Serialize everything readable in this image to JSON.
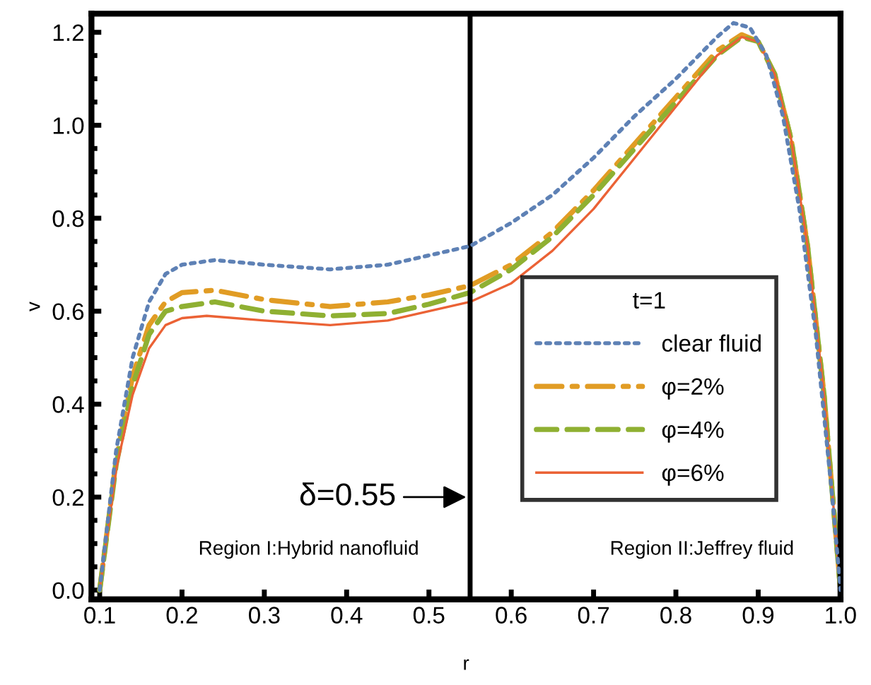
{
  "chart_data": {
    "type": "line",
    "xlabel": "r",
    "ylabel": "v",
    "legend_title": "t=1",
    "legend": "right",
    "grid": false,
    "marker": "none",
    "xlim": [
      0.09,
      1.0
    ],
    "ylim": [
      -0.02,
      1.24
    ],
    "xticks": [
      0.1,
      0.2,
      0.3,
      0.4,
      0.5,
      0.6,
      0.7,
      0.8,
      0.9,
      {
        "value": 1,
        "label": "1.0"
      }
    ],
    "yticks": [
      {
        "value": 0,
        "label": "0.0"
      },
      0.2,
      0.4,
      0.6,
      0.8,
      {
        "value": 1,
        "label": "1.0"
      },
      1.2
    ],
    "ref_lines": [
      {
        "axis": "x",
        "value": 0.55,
        "color": "#000000",
        "line_style": "solid"
      }
    ],
    "annotations": [
      {
        "text": "δ=0.55",
        "x": 0.55,
        "y": 0.2
      },
      "Region I:Hybrid nanofluid",
      "Region II:Jeffrey fluid"
    ],
    "series": [
      {
        "name": "clear fluid",
        "color": "#5e81b5",
        "line_style": "dotted",
        "x": [
          0.1,
          0.12,
          0.14,
          0.16,
          0.18,
          0.2,
          0.24,
          0.3,
          0.38,
          0.45,
          0.5,
          0.55,
          0.6,
          0.65,
          0.7,
          0.75,
          0.8,
          0.85,
          0.87,
          0.89,
          0.91,
          0.93,
          0.95,
          0.97,
          0.99,
          1.0
        ],
        "values": [
          0,
          0.3,
          0.5,
          0.62,
          0.68,
          0.7,
          0.71,
          0.7,
          0.69,
          0.7,
          0.72,
          0.74,
          0.79,
          0.85,
          0.93,
          1.02,
          1.1,
          1.19,
          1.22,
          1.21,
          1.15,
          1.02,
          0.82,
          0.55,
          0.2,
          0
        ]
      },
      {
        "name": "φ=2%",
        "color": "#e19c24",
        "line_style": "dashdot",
        "x": [
          0.1,
          0.12,
          0.14,
          0.16,
          0.18,
          0.2,
          0.24,
          0.3,
          0.38,
          0.45,
          0.5,
          0.55,
          0.6,
          0.65,
          0.7,
          0.75,
          0.8,
          0.85,
          0.88,
          0.9,
          0.92,
          0.94,
          0.96,
          0.98,
          1.0
        ],
        "values": [
          0,
          0.28,
          0.46,
          0.57,
          0.62,
          0.64,
          0.645,
          0.625,
          0.61,
          0.62,
          0.635,
          0.655,
          0.7,
          0.77,
          0.86,
          0.96,
          1.06,
          1.16,
          1.195,
          1.18,
          1.11,
          0.97,
          0.74,
          0.42,
          0
        ]
      },
      {
        "name": "φ=4%",
        "color": "#8fb032",
        "line_style": "dashed",
        "x": [
          0.1,
          0.12,
          0.14,
          0.16,
          0.18,
          0.2,
          0.24,
          0.3,
          0.38,
          0.45,
          0.5,
          0.55,
          0.6,
          0.65,
          0.7,
          0.75,
          0.8,
          0.85,
          0.88,
          0.9,
          0.92,
          0.94,
          0.96,
          0.98,
          1.0
        ],
        "values": [
          0,
          0.27,
          0.44,
          0.55,
          0.6,
          0.61,
          0.62,
          0.6,
          0.59,
          0.595,
          0.615,
          0.64,
          0.69,
          0.76,
          0.85,
          0.95,
          1.05,
          1.15,
          1.19,
          1.18,
          1.11,
          0.97,
          0.74,
          0.42,
          0
        ]
      },
      {
        "name": "φ=6%",
        "color": "#eb6235",
        "line_style": "solid",
        "x": [
          0.1,
          0.12,
          0.14,
          0.16,
          0.18,
          0.2,
          0.23,
          0.3,
          0.38,
          0.45,
          0.5,
          0.55,
          0.6,
          0.65,
          0.7,
          0.75,
          0.8,
          0.85,
          0.88,
          0.9,
          0.92,
          0.94,
          0.96,
          0.98,
          1.0
        ],
        "values": [
          0,
          0.26,
          0.42,
          0.52,
          0.57,
          0.585,
          0.59,
          0.58,
          0.57,
          0.58,
          0.6,
          0.62,
          0.66,
          0.73,
          0.82,
          0.93,
          1.04,
          1.15,
          1.19,
          1.18,
          1.11,
          0.97,
          0.74,
          0.42,
          0
        ]
      }
    ]
  }
}
